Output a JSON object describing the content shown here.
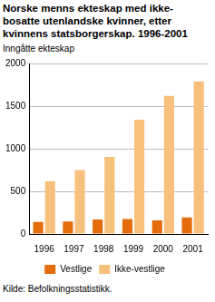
{
  "chart_data": {
    "type": "bar",
    "title": [
      "Norske menns ekteskap med ikke-",
      "bosatte utenlandske kvinner, etter",
      "kvinnens statsborgerskap. 1996-2001"
    ],
    "y_label": "Inngåtte ekteskap",
    "source": "Kilde: Befolkningsstatistikk.",
    "categories": [
      "1996",
      "1997",
      "1998",
      "1999",
      "2000",
      "2001"
    ],
    "series": [
      {
        "name": "Vestlige",
        "color": "#e46c0a",
        "values": [
          140,
          145,
          170,
          175,
          160,
          195
        ]
      },
      {
        "name": "Ikke-vestlige",
        "color": "#f7c07c",
        "values": [
          620,
          750,
          905,
          1340,
          1620,
          1790
        ]
      }
    ],
    "ylim": [
      0,
      2000
    ],
    "yticks": [
      0,
      500,
      1000,
      1500,
      2000
    ],
    "grid": true,
    "legend": "bottom"
  }
}
